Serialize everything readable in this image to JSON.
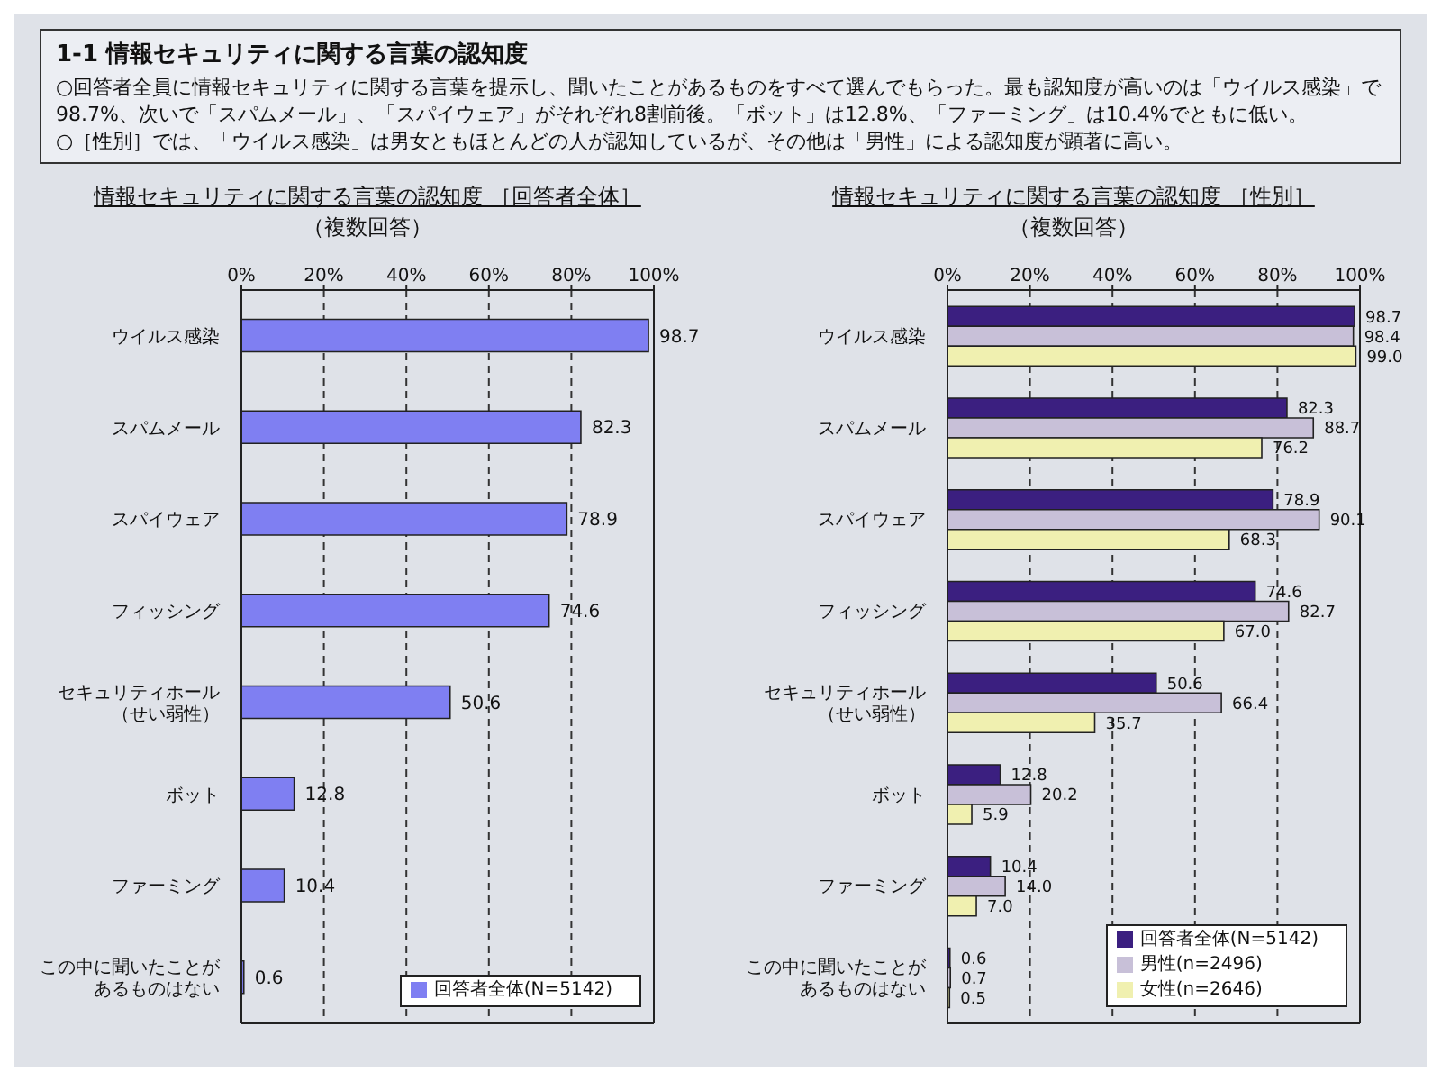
{
  "chart_data": [
    {
      "type": "other",
      "title": "1-1 情報セキュリティに関する言葉の認知度",
      "annotations": [
        "○回答者全員に情報セキュリティに関する言葉を提示し、聞いたことがあるものをすべて選んでもらった。最も認知度が高いのは「ウイルス感染」で98.7%、次いで「スパムメール」、「スパイウェア」がそれぞれ8割前後。「ボット」は12.8%、「ファーミング」は10.4%でともに低い。",
        "○［性別］では、「ウイルス感染」は男女ともほとんどの人が認知しているが、その他は「男性」による認知度が顕著に高い。"
      ]
    },
    {
      "type": "bar",
      "orientation": "horizontal",
      "title": "情報セキュリティに関する言葉の認知度 ［回答者全体］",
      "subtitle": "（複数回答）",
      "categories": [
        "ウイルス感染",
        "スパムメール",
        "スパイウェア",
        "フィッシング",
        "セキュリティホール（せい弱性）",
        "ボット",
        "ファーミング",
        "この中に聞いたことがあるものはない"
      ],
      "series": [
        {
          "name": "回答者全体(N=5142)",
          "color": "#7f7ff2",
          "values": [
            98.7,
            82.3,
            78.9,
            74.6,
            50.6,
            12.8,
            10.4,
            0.6
          ]
        }
      ],
      "xlim": [
        0,
        100
      ],
      "xticks": [
        {
          "value": 0,
          "label": "0%"
        },
        {
          "value": 20,
          "label": "20%"
        },
        {
          "value": 40,
          "label": "40%"
        },
        {
          "value": 60,
          "label": "60%"
        },
        {
          "value": 80,
          "label": "80%"
        },
        {
          "value": 100,
          "label": "100%"
        }
      ],
      "grid": "x",
      "legend": "bottom right",
      "data_labels": true
    },
    {
      "type": "bar",
      "orientation": "horizontal",
      "title": "情報セキュリティに関する言葉の認知度 ［性別］",
      "subtitle": "（複数回答）",
      "categories": [
        "ウイルス感染",
        "スパムメール",
        "スパイウェア",
        "フィッシング",
        "セキュリティホール（せい弱性）",
        "ボット",
        "ファーミング",
        "この中に聞いたことがあるものはない"
      ],
      "series": [
        {
          "name": "回答者全体(N=5142)",
          "color": "#3b1f80",
          "values": [
            98.7,
            82.3,
            78.9,
            74.6,
            50.6,
            12.8,
            10.4,
            0.6
          ],
          "value_labels": [
            "98.7",
            "82.3",
            "78.9",
            "74.6",
            "50.6",
            "12.8",
            "10.4",
            "0.6"
          ]
        },
        {
          "name": "男性(n=2496)",
          "color": "#c8c0d8",
          "values": [
            98.4,
            88.7,
            90.1,
            82.7,
            66.4,
            20.2,
            14.0,
            0.7
          ],
          "value_labels": [
            "98.4",
            "88.7",
            "90.1",
            "82.7",
            "66.4",
            "20.2",
            "14.0",
            "0.7"
          ]
        },
        {
          "name": "女性(n=2646)",
          "color": "#f0f0b0",
          "values": [
            99.0,
            76.2,
            68.3,
            67.0,
            35.7,
            5.9,
            7.0,
            0.5
          ],
          "value_labels": [
            "99.0",
            "76.2",
            "68.3",
            "67.0",
            "35.7",
            "5.9",
            "7.0",
            "0.5"
          ]
        }
      ],
      "xlim": [
        0,
        100
      ],
      "xticks": [
        {
          "value": 0,
          "label": "0%"
        },
        {
          "value": 20,
          "label": "20%"
        },
        {
          "value": 40,
          "label": "40%"
        },
        {
          "value": 60,
          "label": "60%"
        },
        {
          "value": 80,
          "label": "80%"
        },
        {
          "value": 100,
          "label": "100%"
        }
      ],
      "grid": "x",
      "legend": "bottom right"
    }
  ]
}
